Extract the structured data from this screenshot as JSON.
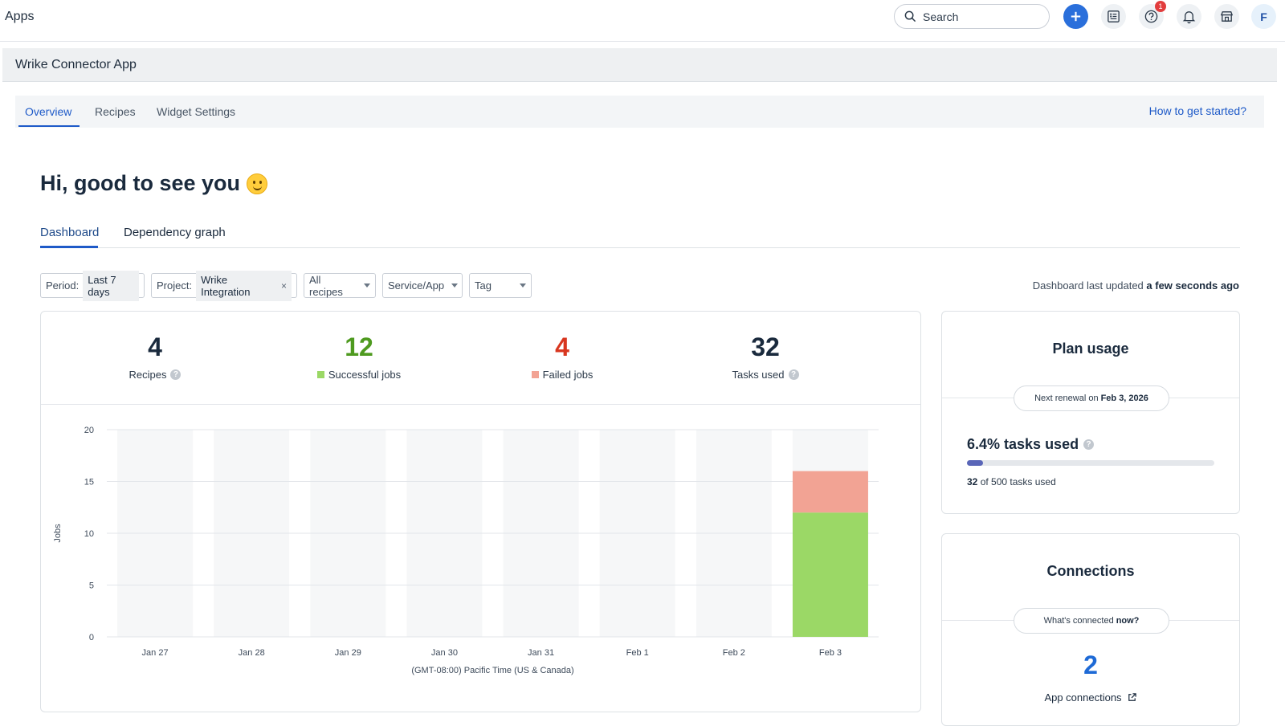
{
  "topbar": {
    "title": "Apps",
    "search_placeholder": "Search",
    "help_badge": "1",
    "avatar_initial": "F",
    "accent": "#2a6fdb"
  },
  "app": {
    "name": "Wrike Connector App",
    "tabs": [
      "Overview",
      "Recipes",
      "Widget Settings"
    ],
    "active_tab": "Overview",
    "help_link": "How to get started?"
  },
  "greeting": "Hi, good to see you",
  "subtabs": [
    "Dashboard",
    "Dependency graph"
  ],
  "filters": {
    "period_label": "Period:",
    "period_value": "Last 7 days",
    "project_label": "Project:",
    "project_value": "Wrike Integration",
    "recipes": "All recipes",
    "service": "Service/App",
    "tag": "Tag",
    "updated_prefix": "Dashboard last updated",
    "updated_value": "a few seconds ago"
  },
  "stats": [
    {
      "value": "4",
      "label": "Recipes",
      "color": "#1a2a3d"
    },
    {
      "value": "12",
      "label": "Successful jobs",
      "color": "#4e9a1f"
    },
    {
      "value": "4",
      "label": "Failed jobs",
      "color": "#d8361f"
    },
    {
      "value": "32",
      "label": "Tasks used",
      "color": "#1a2a3d"
    }
  ],
  "chart_data": {
    "type": "bar",
    "stacked": true,
    "categories": [
      "Jan 27",
      "Jan 28",
      "Jan 29",
      "Jan 30",
      "Jan 31",
      "Feb 1",
      "Feb 2",
      "Feb 3"
    ],
    "series": [
      {
        "name": "Successful jobs",
        "values": [
          0,
          0,
          0,
          0,
          0,
          0,
          0,
          12
        ],
        "color": "#9bd866"
      },
      {
        "name": "Failed jobs",
        "values": [
          0,
          0,
          0,
          0,
          0,
          0,
          0,
          4
        ],
        "color": "#f2a394"
      }
    ],
    "ylabel": "Jobs",
    "xlabel": "(GMT-08:00) Pacific Time (US & Canada)",
    "ylim": [
      0,
      20
    ],
    "yticks": [
      0,
      5,
      10,
      15,
      20
    ],
    "grid": true
  },
  "plan": {
    "title": "Plan usage",
    "renewal_prefix": "Next renewal on",
    "renewal_date": "Feb 3, 2026",
    "percent_text": "6.4% tasks used",
    "used_fraction": 0.064,
    "used_count": "32",
    "used_suffix": "of 500 tasks used"
  },
  "connections": {
    "title": "Connections",
    "pill_prefix": "What's connected",
    "pill_bold": "now?",
    "count": "2",
    "link_label": "App connections"
  }
}
